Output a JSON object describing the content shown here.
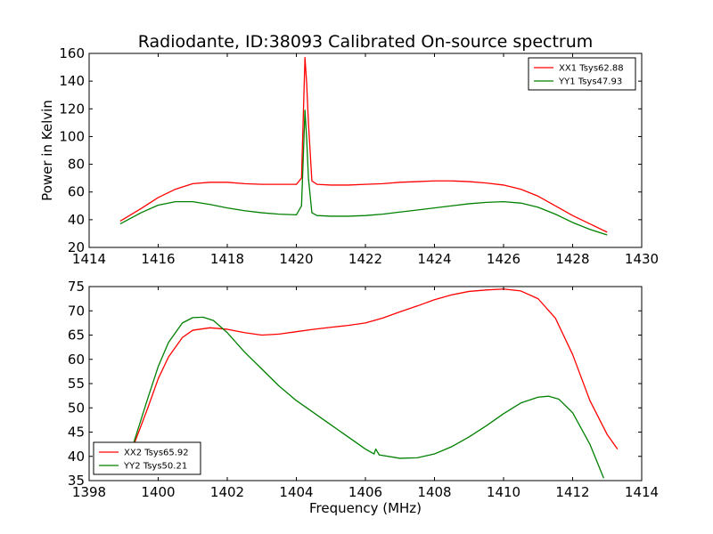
{
  "figure": {
    "title": "Radiodante, ID:38093 Calibrated On-source spectrum",
    "xlabel": "Frequency (MHz)"
  },
  "colors": {
    "series_a": "#ff0000",
    "series_b": "#008000",
    "axes": "#000000",
    "background": "#ffffff"
  },
  "chart_data": [
    {
      "type": "line",
      "title": "Radiodante, ID:38093 Calibrated On-source spectrum",
      "xlabel": "",
      "ylabel": "Power in Kelvin",
      "xlim": [
        1414,
        1430
      ],
      "ylim": [
        20,
        160
      ],
      "xticks": [
        1414,
        1416,
        1418,
        1420,
        1422,
        1424,
        1426,
        1428,
        1430
      ],
      "yticks": [
        20,
        40,
        60,
        80,
        100,
        120,
        140,
        160
      ],
      "legend_position": "top-right",
      "grid": false,
      "series": [
        {
          "name": "XX1 Tsys62.88",
          "color": "#ff0000",
          "x": [
            1414.9,
            1415.5,
            1416.0,
            1416.5,
            1417.0,
            1417.5,
            1418.0,
            1418.5,
            1419.0,
            1419.5,
            1420.0,
            1420.15,
            1420.25,
            1420.3,
            1420.35,
            1420.45,
            1420.6,
            1421.0,
            1421.5,
            1422.0,
            1422.5,
            1423.0,
            1423.5,
            1424.0,
            1424.5,
            1425.0,
            1425.5,
            1426.0,
            1426.5,
            1427.0,
            1427.5,
            1428.0,
            1428.5,
            1429.0
          ],
          "y": [
            39,
            48,
            56,
            62,
            66,
            67,
            67,
            66,
            65.5,
            65.5,
            65.5,
            70,
            157,
            138,
            110,
            68,
            65.5,
            65,
            65,
            65.5,
            66,
            67,
            67.5,
            68,
            68,
            67.5,
            66.5,
            65,
            62,
            57,
            50,
            43,
            37,
            31
          ]
        },
        {
          "name": "YY1 Tsys47.93",
          "color": "#008000",
          "x": [
            1414.9,
            1415.5,
            1416.0,
            1416.5,
            1417.0,
            1417.5,
            1418.0,
            1418.5,
            1419.0,
            1419.5,
            1420.0,
            1420.15,
            1420.25,
            1420.3,
            1420.35,
            1420.45,
            1420.6,
            1421.0,
            1421.5,
            1422.0,
            1422.5,
            1423.0,
            1423.5,
            1424.0,
            1424.5,
            1425.0,
            1425.5,
            1426.0,
            1426.5,
            1427.0,
            1427.5,
            1428.0,
            1428.5,
            1429.0
          ],
          "y": [
            37,
            45,
            50.5,
            53,
            53,
            51,
            48.5,
            46.5,
            45,
            44,
            43.5,
            50,
            119,
            98,
            70,
            45,
            43,
            42.5,
            42.5,
            43,
            44,
            45.5,
            47,
            48.5,
            50,
            51.5,
            52.5,
            53,
            52,
            49,
            44,
            38,
            33,
            29
          ]
        }
      ]
    },
    {
      "type": "line",
      "title": "",
      "xlabel": "Frequency (MHz)",
      "ylabel": "",
      "xlim": [
        1398,
        1414
      ],
      "ylim": [
        35,
        75
      ],
      "xticks": [
        1398,
        1400,
        1402,
        1404,
        1406,
        1408,
        1410,
        1412,
        1414
      ],
      "yticks": [
        35,
        40,
        45,
        50,
        55,
        60,
        65,
        70,
        75
      ],
      "legend_position": "bottom-left",
      "grid": false,
      "series": [
        {
          "name": "XX2 Tsys65.92",
          "color": "#ff0000",
          "x": [
            1399.3,
            1399.7,
            1400.0,
            1400.3,
            1400.7,
            1401.0,
            1401.5,
            1402.0,
            1402.5,
            1403.0,
            1403.5,
            1404.0,
            1404.5,
            1405.0,
            1405.5,
            1406.0,
            1406.5,
            1407.0,
            1407.5,
            1408.0,
            1408.5,
            1409.0,
            1409.5,
            1410.0,
            1410.5,
            1411.0,
            1411.5,
            1412.0,
            1412.5,
            1413.0,
            1413.3
          ],
          "y": [
            42.5,
            50,
            56,
            60.5,
            64.5,
            66,
            66.5,
            66.2,
            65.5,
            65,
            65.2,
            65.7,
            66.2,
            66.6,
            67,
            67.5,
            68.5,
            69.8,
            71,
            72.3,
            73.3,
            74,
            74.3,
            74.5,
            74.1,
            72.5,
            68.5,
            61,
            51.5,
            44.5,
            41.5
          ]
        },
        {
          "name": "YY2 Tsys50.21",
          "color": "#008000",
          "x": [
            1399.3,
            1399.7,
            1400.0,
            1400.3,
            1400.7,
            1401.0,
            1401.3,
            1401.6,
            1402.0,
            1402.5,
            1403.0,
            1403.5,
            1404.0,
            1404.5,
            1405.0,
            1405.5,
            1406.0,
            1406.25,
            1406.3,
            1406.4,
            1407.0,
            1407.5,
            1408.0,
            1408.5,
            1409.0,
            1409.5,
            1410.0,
            1410.5,
            1411.0,
            1411.3,
            1411.6,
            1412.0,
            1412.5,
            1412.9
          ],
          "y": [
            43,
            52,
            58.5,
            63.5,
            67.5,
            68.6,
            68.7,
            68,
            65.5,
            61.5,
            58,
            54.5,
            51.5,
            49,
            46.5,
            44,
            41.5,
            40.5,
            41.5,
            40.3,
            39.6,
            39.7,
            40.5,
            42,
            44,
            46.3,
            48.8,
            51,
            52.2,
            52.4,
            51.8,
            49,
            42.5,
            35.5
          ]
        }
      ]
    }
  ]
}
